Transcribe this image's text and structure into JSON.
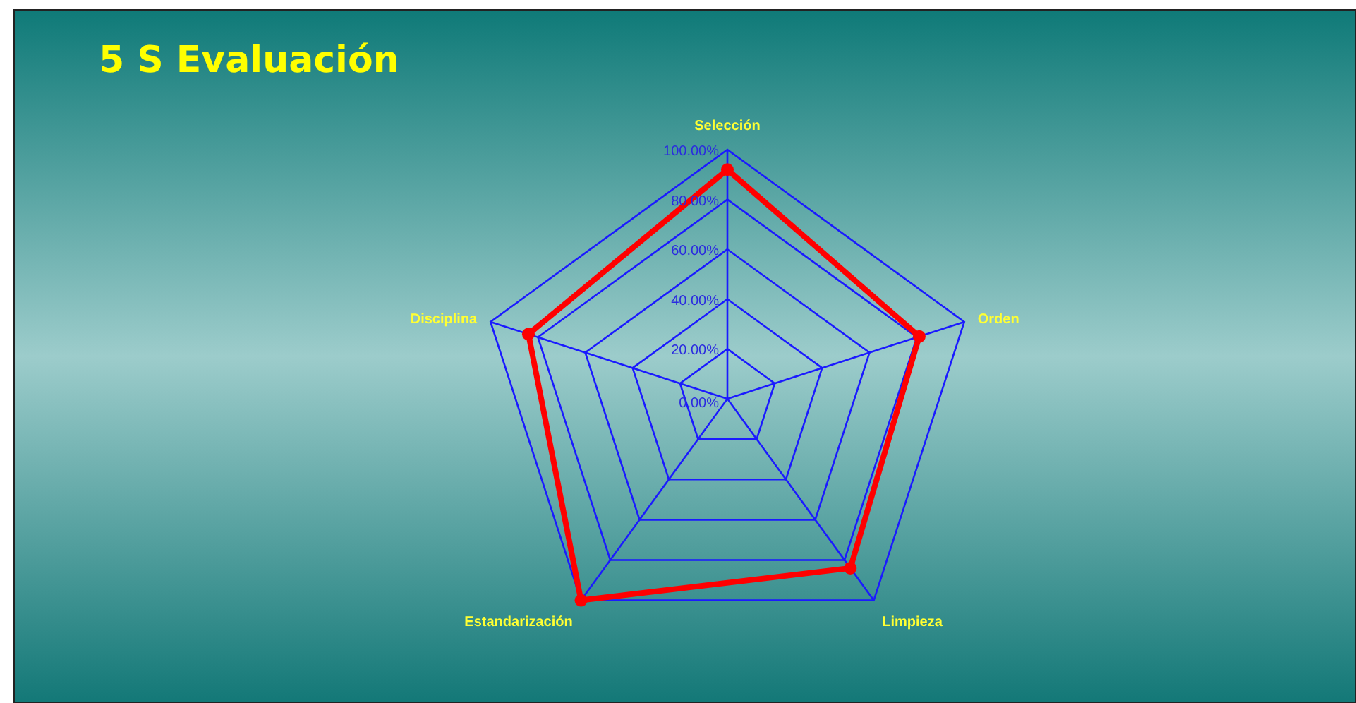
{
  "chart_data": {
    "type": "radar",
    "title": "5 S Evaluación",
    "categories": [
      "Selección",
      "Orden",
      "Limpieza",
      "Estandarización",
      "Disciplina"
    ],
    "series": [
      {
        "color": "#ff0000",
        "values": [
          92,
          81,
          84,
          100,
          84
        ]
      }
    ],
    "ylim": [
      0,
      100
    ],
    "yticks": [
      {
        "value": 0,
        "label": "0.00%"
      },
      {
        "value": 20,
        "label": "20.00%"
      },
      {
        "value": 40,
        "label": "40.00%"
      },
      {
        "value": 60,
        "label": "60.00%"
      },
      {
        "value": 80,
        "label": "80.00%"
      },
      {
        "value": 100,
        "label": "100.00%"
      }
    ],
    "grid": true,
    "marker": "circle",
    "line_style": "solid"
  }
}
